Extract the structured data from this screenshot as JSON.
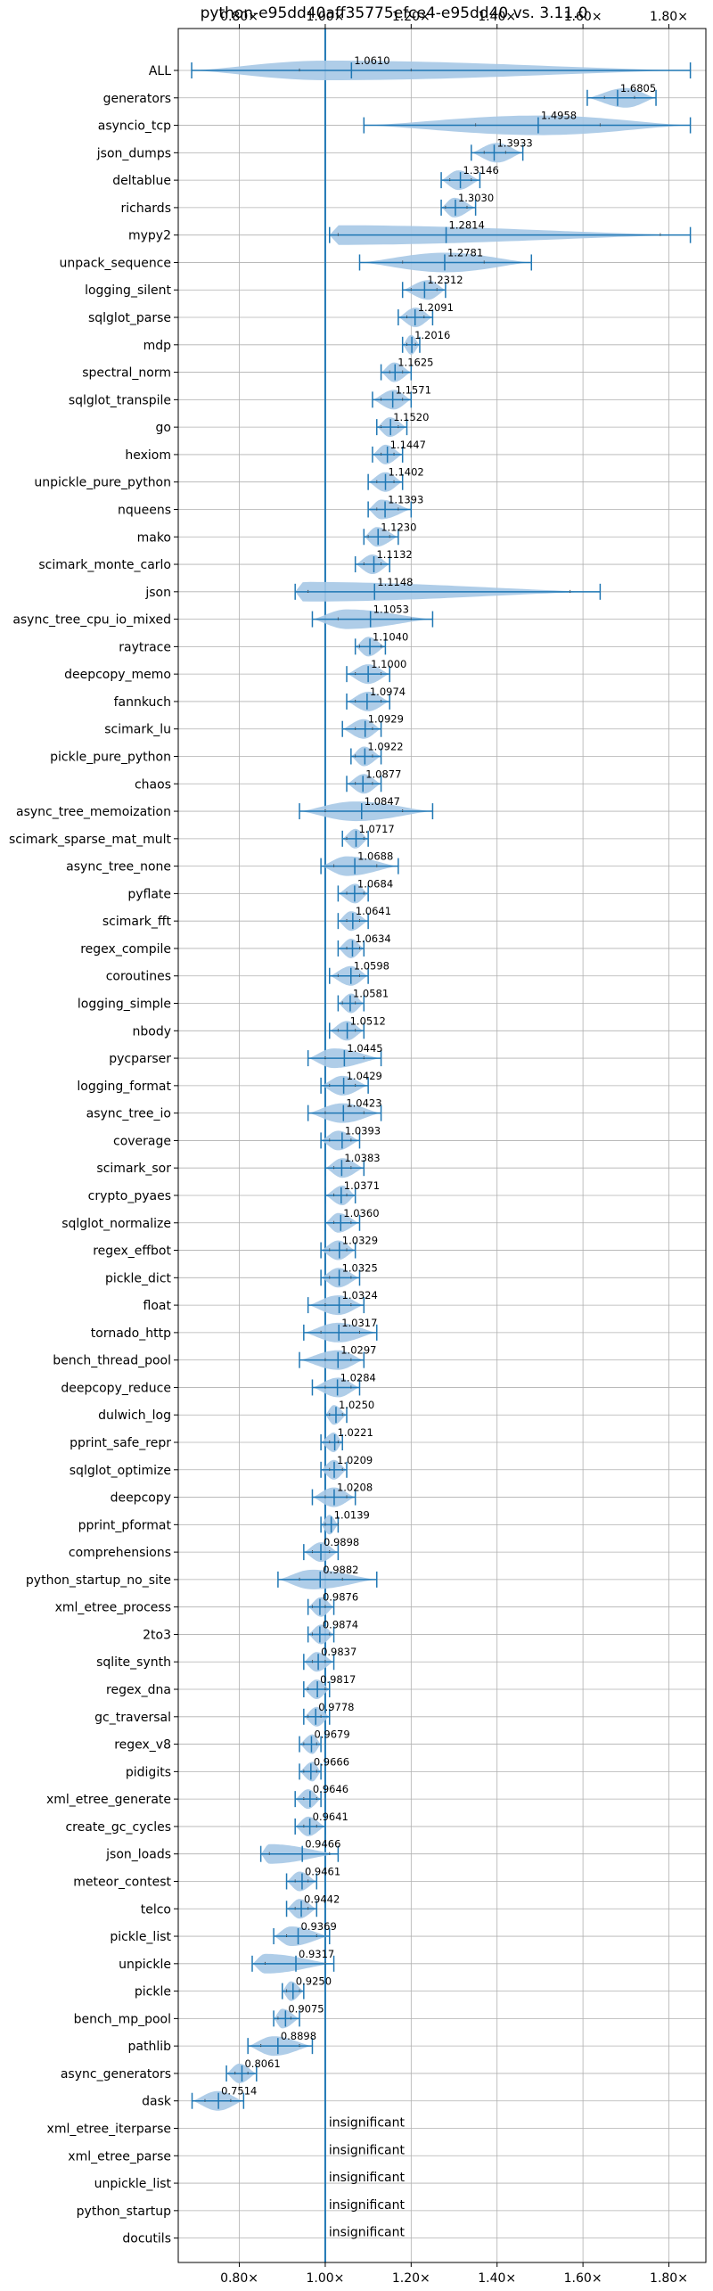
{
  "chart_data": {
    "type": "violin",
    "title": "python-e95dd40aff35775efce4-e95dd40 vs. 3.11.0",
    "x_range": [
      0.6578,
      1.8861
    ],
    "x_ticks": [
      0.8,
      1.0,
      1.2,
      1.4,
      1.6,
      1.8
    ],
    "x_tick_labels": [
      "0.80×",
      "1.00×",
      "1.20×",
      "1.40×",
      "1.60×",
      "1.80×"
    ],
    "reference_x": 1.0,
    "grid": true,
    "colors": {
      "violin": "#a6c8e6",
      "line": "#1f77b4",
      "grid": "#b0b0b0"
    },
    "insignificant_label": "insignificant",
    "benchmarks": [
      {
        "name": "ALL",
        "median": 1.061,
        "label": "1.0610",
        "min": 0.689,
        "max": 1.85,
        "q1": 0.94,
        "q3": 1.2,
        "peak": 1.0
      },
      {
        "name": "generators",
        "median": 1.6805,
        "label": "1.6805",
        "min": 1.61,
        "max": 1.77,
        "q1": 1.65,
        "q3": 1.72,
        "peak": 1.7
      },
      {
        "name": "asyncio_tcp",
        "median": 1.4958,
        "label": "1.4958",
        "min": 1.09,
        "max": 1.85,
        "q1": 1.35,
        "q3": 1.64,
        "peak": 1.5
      },
      {
        "name": "json_dumps",
        "median": 1.3933,
        "label": "1.3933",
        "min": 1.34,
        "max": 1.46,
        "q1": 1.37,
        "q3": 1.42,
        "peak": 1.4
      },
      {
        "name": "deltablue",
        "median": 1.3146,
        "label": "1.3146",
        "min": 1.27,
        "max": 1.36,
        "q1": 1.29,
        "q3": 1.34,
        "peak": 1.31
      },
      {
        "name": "richards",
        "median": 1.303,
        "label": "1.3030",
        "min": 1.27,
        "max": 1.35,
        "q1": 1.28,
        "q3": 1.33,
        "peak": 1.3
      },
      {
        "name": "mypy2",
        "median": 1.2814,
        "label": "1.2814",
        "min": 1.01,
        "max": 1.85,
        "q1": 1.03,
        "q3": 1.78,
        "peak": 1.02
      },
      {
        "name": "unpack_sequence",
        "median": 1.2781,
        "label": "1.2781",
        "min": 1.08,
        "max": 1.48,
        "q1": 1.18,
        "q3": 1.37,
        "peak": 1.28
      },
      {
        "name": "logging_silent",
        "median": 1.2312,
        "label": "1.2312",
        "min": 1.18,
        "max": 1.28,
        "q1": 1.2,
        "q3": 1.26,
        "peak": 1.24
      },
      {
        "name": "sqlglot_parse",
        "median": 1.2091,
        "label": "1.2091",
        "min": 1.17,
        "max": 1.25,
        "q1": 1.19,
        "q3": 1.23,
        "peak": 1.21
      },
      {
        "name": "mdp",
        "median": 1.2016,
        "label": "1.2016",
        "min": 1.18,
        "max": 1.22,
        "q1": 1.19,
        "q3": 1.21,
        "peak": 1.2
      },
      {
        "name": "spectral_norm",
        "median": 1.1625,
        "label": "1.1625",
        "min": 1.13,
        "max": 1.2,
        "q1": 1.15,
        "q3": 1.18,
        "peak": 1.16
      },
      {
        "name": "sqlglot_transpile",
        "median": 1.1571,
        "label": "1.1571",
        "min": 1.11,
        "max": 1.2,
        "q1": 1.13,
        "q3": 1.18,
        "peak": 1.16
      },
      {
        "name": "go",
        "median": 1.152,
        "label": "1.1520",
        "min": 1.12,
        "max": 1.19,
        "q1": 1.13,
        "q3": 1.17,
        "peak": 1.15
      },
      {
        "name": "hexiom",
        "median": 1.1447,
        "label": "1.1447",
        "min": 1.11,
        "max": 1.18,
        "q1": 1.13,
        "q3": 1.16,
        "peak": 1.14
      },
      {
        "name": "unpickle_pure_python",
        "median": 1.1402,
        "label": "1.1402",
        "min": 1.1,
        "max": 1.18,
        "q1": 1.12,
        "q3": 1.16,
        "peak": 1.14
      },
      {
        "name": "nqueens",
        "median": 1.1393,
        "label": "1.1393",
        "min": 1.1,
        "max": 1.2,
        "q1": 1.12,
        "q3": 1.17,
        "peak": 1.13
      },
      {
        "name": "mako",
        "median": 1.123,
        "label": "1.1230",
        "min": 1.09,
        "max": 1.17,
        "q1": 1.1,
        "q3": 1.15,
        "peak": 1.12
      },
      {
        "name": "scimark_monte_carlo",
        "median": 1.1132,
        "label": "1.1132",
        "min": 1.07,
        "max": 1.15,
        "q1": 1.09,
        "q3": 1.13,
        "peak": 1.11
      },
      {
        "name": "json",
        "median": 1.1148,
        "label": "1.1148",
        "min": 0.93,
        "max": 1.64,
        "q1": 0.96,
        "q3": 1.57,
        "peak": 0.95
      },
      {
        "name": "async_tree_cpu_io_mixed",
        "median": 1.1053,
        "label": "1.1053",
        "min": 0.97,
        "max": 1.25,
        "q1": 1.03,
        "q3": 1.2,
        "peak": 1.05
      },
      {
        "name": "raytrace",
        "median": 1.104,
        "label": "1.1040",
        "min": 1.07,
        "max": 1.14,
        "q1": 1.08,
        "q3": 1.13,
        "peak": 1.1
      },
      {
        "name": "deepcopy_memo",
        "median": 1.1,
        "label": "1.1000",
        "min": 1.05,
        "max": 1.15,
        "q1": 1.07,
        "q3": 1.13,
        "peak": 1.1
      },
      {
        "name": "fannkuch",
        "median": 1.0974,
        "label": "1.0974",
        "min": 1.05,
        "max": 1.15,
        "q1": 1.07,
        "q3": 1.13,
        "peak": 1.1
      },
      {
        "name": "scimark_lu",
        "median": 1.0929,
        "label": "1.0929",
        "min": 1.04,
        "max": 1.13,
        "q1": 1.07,
        "q3": 1.11,
        "peak": 1.09
      },
      {
        "name": "pickle_pure_python",
        "median": 1.0922,
        "label": "1.0922",
        "min": 1.06,
        "max": 1.13,
        "q1": 1.07,
        "q3": 1.11,
        "peak": 1.09
      },
      {
        "name": "chaos",
        "median": 1.0877,
        "label": "1.0877",
        "min": 1.05,
        "max": 1.13,
        "q1": 1.07,
        "q3": 1.11,
        "peak": 1.09
      },
      {
        "name": "async_tree_memoization",
        "median": 1.0847,
        "label": "1.0847",
        "min": 0.94,
        "max": 1.25,
        "q1": 1.0,
        "q3": 1.18,
        "peak": 1.07
      },
      {
        "name": "scimark_sparse_mat_mult",
        "median": 1.0717,
        "label": "1.0717",
        "min": 1.04,
        "max": 1.1,
        "q1": 1.05,
        "q3": 1.09,
        "peak": 1.07
      },
      {
        "name": "async_tree_none",
        "median": 1.0688,
        "label": "1.0688",
        "min": 0.99,
        "max": 1.17,
        "q1": 1.02,
        "q3": 1.12,
        "peak": 1.05
      },
      {
        "name": "pyflate",
        "median": 1.0684,
        "label": "1.0684",
        "min": 1.03,
        "max": 1.1,
        "q1": 1.05,
        "q3": 1.09,
        "peak": 1.07
      },
      {
        "name": "scimark_fft",
        "median": 1.0641,
        "label": "1.0641",
        "min": 1.03,
        "max": 1.1,
        "q1": 1.05,
        "q3": 1.08,
        "peak": 1.06
      },
      {
        "name": "regex_compile",
        "median": 1.0634,
        "label": "1.0634",
        "min": 1.03,
        "max": 1.09,
        "q1": 1.05,
        "q3": 1.08,
        "peak": 1.06
      },
      {
        "name": "coroutines",
        "median": 1.0598,
        "label": "1.0598",
        "min": 1.01,
        "max": 1.1,
        "q1": 1.03,
        "q3": 1.08,
        "peak": 1.06
      },
      {
        "name": "logging_simple",
        "median": 1.0581,
        "label": "1.0581",
        "min": 1.03,
        "max": 1.09,
        "q1": 1.04,
        "q3": 1.07,
        "peak": 1.06
      },
      {
        "name": "nbody",
        "median": 1.0512,
        "label": "1.0512",
        "min": 1.01,
        "max": 1.09,
        "q1": 1.03,
        "q3": 1.07,
        "peak": 1.05
      },
      {
        "name": "pycparser",
        "median": 1.0445,
        "label": "1.0445",
        "min": 0.96,
        "max": 1.13,
        "q1": 1.0,
        "q3": 1.09,
        "peak": 1.02
      },
      {
        "name": "logging_format",
        "median": 1.0429,
        "label": "1.0429",
        "min": 0.99,
        "max": 1.1,
        "q1": 1.01,
        "q3": 1.07,
        "peak": 1.04
      },
      {
        "name": "async_tree_io",
        "median": 1.0423,
        "label": "1.0423",
        "min": 0.96,
        "max": 1.13,
        "q1": 1.0,
        "q3": 1.09,
        "peak": 1.04
      },
      {
        "name": "coverage",
        "median": 1.0393,
        "label": "1.0393",
        "min": 0.99,
        "max": 1.08,
        "q1": 1.01,
        "q3": 1.06,
        "peak": 1.03
      },
      {
        "name": "scimark_sor",
        "median": 1.0383,
        "label": "1.0383",
        "min": 1.0,
        "max": 1.09,
        "q1": 1.02,
        "q3": 1.06,
        "peak": 1.04
      },
      {
        "name": "crypto_pyaes",
        "median": 1.0371,
        "label": "1.0371",
        "min": 1.0,
        "max": 1.07,
        "q1": 1.02,
        "q3": 1.05,
        "peak": 1.04
      },
      {
        "name": "sqlglot_normalize",
        "median": 1.036,
        "label": "1.0360",
        "min": 1.0,
        "max": 1.08,
        "q1": 1.02,
        "q3": 1.06,
        "peak": 1.03
      },
      {
        "name": "regex_effbot",
        "median": 1.0329,
        "label": "1.0329",
        "min": 0.99,
        "max": 1.07,
        "q1": 1.01,
        "q3": 1.05,
        "peak": 1.03
      },
      {
        "name": "pickle_dict",
        "median": 1.0325,
        "label": "1.0325",
        "min": 0.99,
        "max": 1.08,
        "q1": 1.01,
        "q3": 1.06,
        "peak": 1.03
      },
      {
        "name": "float",
        "median": 1.0324,
        "label": "1.0324",
        "min": 0.96,
        "max": 1.09,
        "q1": 1.0,
        "q3": 1.06,
        "peak": 1.03
      },
      {
        "name": "tornado_http",
        "median": 1.0317,
        "label": "1.0317",
        "min": 0.95,
        "max": 1.12,
        "q1": 0.99,
        "q3": 1.08,
        "peak": 1.03
      },
      {
        "name": "bench_thread_pool",
        "median": 1.0297,
        "label": "1.0297",
        "min": 0.94,
        "max": 1.09,
        "q1": 1.0,
        "q3": 1.06,
        "peak": 1.03
      },
      {
        "name": "deepcopy_reduce",
        "median": 1.0284,
        "label": "1.0284",
        "min": 0.97,
        "max": 1.08,
        "q1": 1.0,
        "q3": 1.06,
        "peak": 1.03
      },
      {
        "name": "dulwich_log",
        "median": 1.025,
        "label": "1.0250",
        "min": 1.0,
        "max": 1.05,
        "q1": 1.01,
        "q3": 1.04,
        "peak": 1.02
      },
      {
        "name": "pprint_safe_repr",
        "median": 1.0221,
        "label": "1.0221",
        "min": 0.99,
        "max": 1.04,
        "q1": 1.01,
        "q3": 1.03,
        "peak": 1.02
      },
      {
        "name": "sqlglot_optimize",
        "median": 1.0209,
        "label": "1.0209",
        "min": 0.99,
        "max": 1.05,
        "q1": 1.01,
        "q3": 1.04,
        "peak": 1.02
      },
      {
        "name": "deepcopy",
        "median": 1.0208,
        "label": "1.0208",
        "min": 0.97,
        "max": 1.07,
        "q1": 1.0,
        "q3": 1.05,
        "peak": 1.02
      },
      {
        "name": "pprint_pformat",
        "median": 1.0139,
        "label": "1.0139",
        "min": 0.99,
        "max": 1.03,
        "q1": 1.0,
        "q3": 1.03,
        "peak": 1.01
      },
      {
        "name": "comprehensions",
        "median": 0.9898,
        "label": "0.9898",
        "min": 0.95,
        "max": 1.03,
        "q1": 0.97,
        "q3": 1.01,
        "peak": 0.99
      },
      {
        "name": "python_startup_no_site",
        "median": 0.9882,
        "label": "0.9882",
        "min": 0.89,
        "max": 1.12,
        "q1": 0.94,
        "q3": 1.04,
        "peak": 0.97
      },
      {
        "name": "xml_etree_process",
        "median": 0.9876,
        "label": "0.9876",
        "min": 0.96,
        "max": 1.02,
        "q1": 0.97,
        "q3": 1.0,
        "peak": 0.99
      },
      {
        "name": "2to3",
        "median": 0.9874,
        "label": "0.9874",
        "min": 0.96,
        "max": 1.02,
        "q1": 0.97,
        "q3": 1.01,
        "peak": 0.99
      },
      {
        "name": "sqlite_synth",
        "median": 0.9837,
        "label": "0.9837",
        "min": 0.95,
        "max": 1.02,
        "q1": 0.97,
        "q3": 1.0,
        "peak": 0.98
      },
      {
        "name": "regex_dna",
        "median": 0.9817,
        "label": "0.9817",
        "min": 0.95,
        "max": 1.01,
        "q1": 0.96,
        "q3": 1.0,
        "peak": 0.98
      },
      {
        "name": "gc_traversal",
        "median": 0.9778,
        "label": "0.9778",
        "min": 0.95,
        "max": 1.01,
        "q1": 0.96,
        "q3": 0.99,
        "peak": 0.98
      },
      {
        "name": "regex_v8",
        "median": 0.9679,
        "label": "0.9679",
        "min": 0.94,
        "max": 0.99,
        "q1": 0.95,
        "q3": 0.98,
        "peak": 0.97
      },
      {
        "name": "pidigits",
        "median": 0.9666,
        "label": "0.9666",
        "min": 0.94,
        "max": 0.99,
        "q1": 0.95,
        "q3": 0.98,
        "peak": 0.97
      },
      {
        "name": "xml_etree_generate",
        "median": 0.9646,
        "label": "0.9646",
        "min": 0.93,
        "max": 0.99,
        "q1": 0.95,
        "q3": 0.98,
        "peak": 0.96
      },
      {
        "name": "create_gc_cycles",
        "median": 0.9641,
        "label": "0.9641",
        "min": 0.93,
        "max": 1.0,
        "q1": 0.95,
        "q3": 0.98,
        "peak": 0.96
      },
      {
        "name": "json_loads",
        "median": 0.9466,
        "label": "0.9466",
        "min": 0.85,
        "max": 1.03,
        "q1": 0.87,
        "q3": 1.01,
        "peak": 0.87
      },
      {
        "name": "meteor_contest",
        "median": 0.9461,
        "label": "0.9461",
        "min": 0.91,
        "max": 0.98,
        "q1": 0.93,
        "q3": 0.96,
        "peak": 0.94
      },
      {
        "name": "telco",
        "median": 0.9442,
        "label": "0.9442",
        "min": 0.91,
        "max": 0.98,
        "q1": 0.93,
        "q3": 0.96,
        "peak": 0.94
      },
      {
        "name": "pickle_list",
        "median": 0.9369,
        "label": "0.9369",
        "min": 0.88,
        "max": 1.01,
        "q1": 0.91,
        "q3": 0.98,
        "peak": 0.92
      },
      {
        "name": "unpickle",
        "median": 0.9317,
        "label": "0.9317",
        "min": 0.83,
        "max": 1.02,
        "q1": 0.86,
        "q3": 1.0,
        "peak": 0.86
      },
      {
        "name": "pickle",
        "median": 0.925,
        "label": "0.9250",
        "min": 0.9,
        "max": 0.95,
        "q1": 0.91,
        "q3": 0.94,
        "peak": 0.92
      },
      {
        "name": "bench_mp_pool",
        "median": 0.9075,
        "label": "0.9075",
        "min": 0.88,
        "max": 0.94,
        "q1": 0.89,
        "q3": 0.92,
        "peak": 0.9
      },
      {
        "name": "pathlib",
        "median": 0.8898,
        "label": "0.8898",
        "min": 0.82,
        "max": 0.97,
        "q1": 0.85,
        "q3": 0.94,
        "peak": 0.88
      },
      {
        "name": "async_generators",
        "median": 0.8061,
        "label": "0.8061",
        "min": 0.77,
        "max": 0.84,
        "q1": 0.79,
        "q3": 0.82,
        "peak": 0.8
      },
      {
        "name": "dask",
        "median": 0.7514,
        "label": "0.7514",
        "min": 0.69,
        "max": 0.81,
        "q1": 0.72,
        "q3": 0.78,
        "peak": 0.75
      },
      {
        "name": "xml_etree_iterparse",
        "insignificant": true
      },
      {
        "name": "xml_etree_parse",
        "insignificant": true
      },
      {
        "name": "unpickle_list",
        "insignificant": true
      },
      {
        "name": "python_startup",
        "insignificant": true
      },
      {
        "name": "docutils",
        "insignificant": true
      }
    ]
  }
}
